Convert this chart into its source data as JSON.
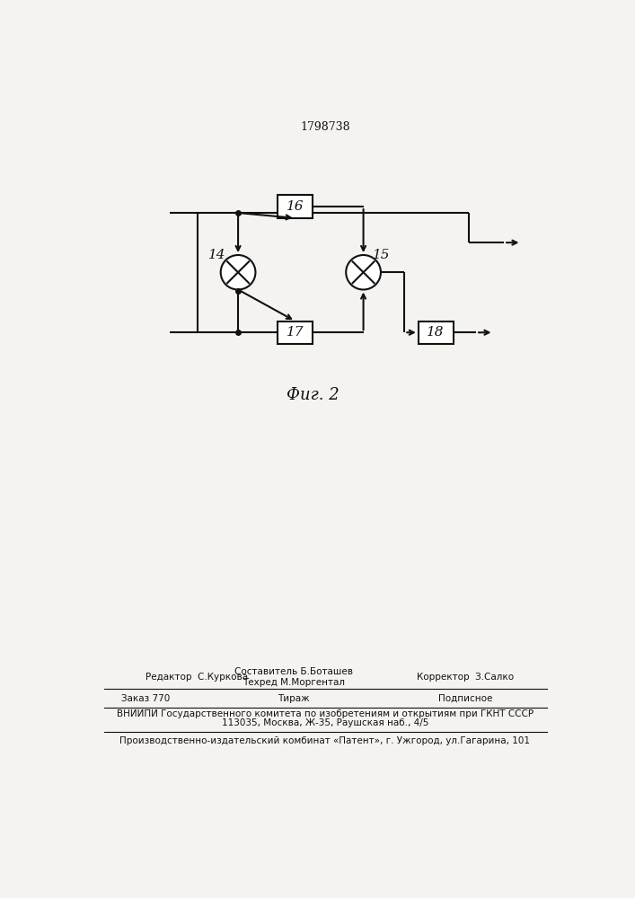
{
  "title": "1798738",
  "fig_caption": "Фиг. 2",
  "bg_color": "#f5f3f0",
  "line_color": "#111111",
  "box_labels": [
    "16",
    "17",
    "18"
  ],
  "circle_labels": [
    "14",
    "15"
  ],
  "footer_editor": "Редактор  С.Куркова",
  "footer_comp": "Составитель Б.Боташев",
  "footer_tech": "Техред М.Моргентал",
  "footer_corr": "Корректор  З.Салко",
  "footer_order": "Заказ 770",
  "footer_tiraj": "Тираж",
  "footer_podp": "Подписное",
  "footer_vniiipi": "ВНИИПИ Государственного комитета по изобретениям и открытиям при ГКНТ СССР",
  "footer_addr": "113035, Москва, Ж-35, Раушская наб., 4/5",
  "footer_patent": "Производственно-издательский комбинат «Патент», г. Ужгород, ул.Гагарина, 101"
}
